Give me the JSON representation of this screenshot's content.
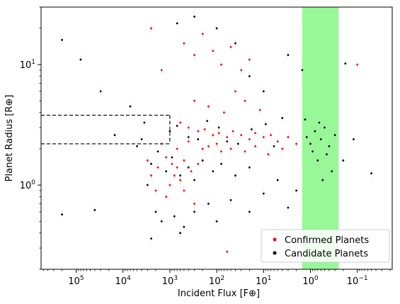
{
  "chart_data": {
    "type": "scatter",
    "title": "",
    "xlabel": "Incident Flux [F⊕]",
    "ylabel": "Planet Radius [R⊕]",
    "x_scale": "log",
    "y_scale": "log",
    "x_reversed": true,
    "xlim": [
      560000,
      0.018
    ],
    "ylim": [
      0.2,
      30
    ],
    "x_ticks": [
      {
        "value": 100000,
        "base": "10",
        "exp": "5"
      },
      {
        "value": 10000,
        "base": "10",
        "exp": "4"
      },
      {
        "value": 1000,
        "base": "10",
        "exp": "3"
      },
      {
        "value": 100,
        "base": "10",
        "exp": "2"
      },
      {
        "value": 10,
        "base": "10",
        "exp": "1"
      },
      {
        "value": 1,
        "base": "10",
        "exp": "0"
      },
      {
        "value": 0.1,
        "base": "10",
        "exp": "−1"
      }
    ],
    "y_ticks": [
      {
        "value": 1,
        "base": "10",
        "exp": "0"
      },
      {
        "value": 10,
        "base": "10",
        "exp": "1"
      }
    ],
    "grid": false,
    "legend": {
      "position": "bottom-right"
    },
    "habitable_zone": {
      "x_from": 1.5,
      "x_to": 0.25,
      "color": "#98f898"
    },
    "radius_gap_lines": [
      {
        "radius": 3.8,
        "x_from": 560000,
        "x_to": 1000
      },
      {
        "radius": 2.2,
        "x_from": 560000,
        "x_to": 1000
      }
    ],
    "series": [
      {
        "name": "Confirmed Planets",
        "color": "#ff0000",
        "points": [
          {
            "x": 500,
            "y": 15
          },
          {
            "x": 300,
            "y": 12
          },
          {
            "x": 200,
            "y": 18
          },
          {
            "x": 120,
            "y": 13
          },
          {
            "x": 80,
            "y": 10
          },
          {
            "x": 50,
            "y": 14
          },
          {
            "x": 30,
            "y": 9
          },
          {
            "x": 20,
            "y": 11
          },
          {
            "x": 2500,
            "y": 20
          },
          {
            "x": 1500,
            "y": 9
          },
          {
            "x": 40,
            "y": 6
          },
          {
            "x": 25,
            "y": 5
          },
          {
            "x": 300,
            "y": 5
          },
          {
            "x": 150,
            "y": 4.5
          },
          {
            "x": 70,
            "y": 4
          },
          {
            "x": 12,
            "y": 4.2
          },
          {
            "x": 600,
            "y": 3.3
          },
          {
            "x": 400,
            "y": 3.0
          },
          {
            "x": 250,
            "y": 2.8
          },
          {
            "x": 180,
            "y": 2.9
          },
          {
            "x": 120,
            "y": 2.6
          },
          {
            "x": 90,
            "y": 2.7
          },
          {
            "x": 60,
            "y": 2.5
          },
          {
            "x": 45,
            "y": 2.8
          },
          {
            "x": 30,
            "y": 2.6
          },
          {
            "x": 20,
            "y": 2.4
          },
          {
            "x": 15,
            "y": 2.7
          },
          {
            "x": 10,
            "y": 2.5
          },
          {
            "x": 7,
            "y": 2.6
          },
          {
            "x": 5,
            "y": 2.3
          },
          {
            "x": 3,
            "y": 2.5
          },
          {
            "x": 2,
            "y": 2.2
          },
          {
            "x": 1200,
            "y": 1.7
          },
          {
            "x": 900,
            "y": 1.5
          },
          {
            "x": 700,
            "y": 1.4
          },
          {
            "x": 500,
            "y": 1.6
          },
          {
            "x": 350,
            "y": 1.3
          },
          {
            "x": 250,
            "y": 1.5
          },
          {
            "x": 1800,
            "y": 1.4
          },
          {
            "x": 2500,
            "y": 1.2
          },
          {
            "x": 3000,
            "y": 1.6
          },
          {
            "x": 800,
            "y": 1.2
          },
          {
            "x": 600,
            "y": 1.1
          },
          {
            "x": 1000,
            "y": 1.0
          },
          {
            "x": 200,
            "y": 2.0
          },
          {
            "x": 150,
            "y": 2.1
          },
          {
            "x": 100,
            "y": 2.2
          },
          {
            "x": 80,
            "y": 1.9
          },
          {
            "x": 400,
            "y": 2.3
          },
          {
            "x": 700,
            "y": 2.0
          },
          {
            "x": 1500,
            "y": 2.2
          },
          {
            "x": 50,
            "y": 2.0
          },
          {
            "x": 25,
            "y": 1.9
          },
          {
            "x": 15,
            "y": 2.1
          },
          {
            "x": 8,
            "y": 1.8
          },
          {
            "x": 4,
            "y": 2.0
          },
          {
            "x": 2000,
            "y": 0.9
          },
          {
            "x": 1200,
            "y": 0.8
          },
          {
            "x": 500,
            "y": 0.9
          },
          {
            "x": 300,
            "y": 0.7
          },
          {
            "x": 60,
            "y": 0.28
          },
          {
            "x": 0.1,
            "y": 10
          }
        ]
      },
      {
        "name": "Candidate Planets",
        "color": "#000000",
        "points": [
          {
            "x": 200000,
            "y": 16
          },
          {
            "x": 80000,
            "y": 11
          },
          {
            "x": 30000,
            "y": 6.0
          },
          {
            "x": 15000,
            "y": 2.6
          },
          {
            "x": 200000,
            "y": 0.57
          },
          {
            "x": 40000,
            "y": 0.62
          },
          {
            "x": 7000,
            "y": 4.5
          },
          {
            "x": 4000,
            "y": 2.4
          },
          {
            "x": 3000,
            "y": 1.0
          },
          {
            "x": 2000,
            "y": 0.6
          },
          {
            "x": 1500,
            "y": 0.5
          },
          {
            "x": 800,
            "y": 0.55
          },
          {
            "x": 500,
            "y": 0.45
          },
          {
            "x": 300,
            "y": 0.6
          },
          {
            "x": 150,
            "y": 0.7
          },
          {
            "x": 100,
            "y": 0.5
          },
          {
            "x": 50,
            "y": 0.75
          },
          {
            "x": 20,
            "y": 0.6
          },
          {
            "x": 10,
            "y": 0.85
          },
          {
            "x": 5,
            "y": 1.1
          },
          {
            "x": 3,
            "y": 0.65
          },
          {
            "x": 2,
            "y": 0.9
          },
          {
            "x": 1000,
            "y": 2.8
          },
          {
            "x": 700,
            "y": 3.1
          },
          {
            "x": 400,
            "y": 2.5
          },
          {
            "x": 250,
            "y": 2.4
          },
          {
            "x": 160,
            "y": 3.4
          },
          {
            "x": 90,
            "y": 3.0
          },
          {
            "x": 60,
            "y": 2.3
          },
          {
            "x": 35,
            "y": 2.2
          },
          {
            "x": 18,
            "y": 2.9
          },
          {
            "x": 9,
            "y": 3.2
          },
          {
            "x": 6,
            "y": 2.1
          },
          {
            "x": 4,
            "y": 3.6
          },
          {
            "x": 1.2,
            "y": 2.5
          },
          {
            "x": 1.0,
            "y": 2.2
          },
          {
            "x": 0.9,
            "y": 1.9
          },
          {
            "x": 0.8,
            "y": 2.8
          },
          {
            "x": 0.7,
            "y": 1.6
          },
          {
            "x": 0.6,
            "y": 2.4
          },
          {
            "x": 0.5,
            "y": 3.0
          },
          {
            "x": 0.45,
            "y": 1.8
          },
          {
            "x": 0.4,
            "y": 2.1
          },
          {
            "x": 0.35,
            "y": 1.3
          },
          {
            "x": 0.3,
            "y": 2.6
          },
          {
            "x": 1.3,
            "y": 3.5
          },
          {
            "x": 0.55,
            "y": 1.1
          },
          {
            "x": 0.65,
            "y": 3.3
          },
          {
            "x": 0.2,
            "y": 1.6
          },
          {
            "x": 0.12,
            "y": 2.4
          },
          {
            "x": 0.05,
            "y": 1.25
          },
          {
            "x": 0.18,
            "y": 10.2
          },
          {
            "x": 2500,
            "y": 1.5
          },
          {
            "x": 1800,
            "y": 1.9
          },
          {
            "x": 1200,
            "y": 1.3
          },
          {
            "x": 900,
            "y": 1.7
          },
          {
            "x": 600,
            "y": 1.2
          },
          {
            "x": 400,
            "y": 1.4
          },
          {
            "x": 300,
            "y": 1.1
          },
          {
            "x": 200,
            "y": 1.6
          },
          {
            "x": 120,
            "y": 1.3
          },
          {
            "x": 80,
            "y": 1.5
          },
          {
            "x": 40,
            "y": 1.2
          },
          {
            "x": 20,
            "y": 1.4
          },
          {
            "x": 700,
            "y": 22
          },
          {
            "x": 300,
            "y": 25
          },
          {
            "x": 100,
            "y": 20
          },
          {
            "x": 40,
            "y": 15
          },
          {
            "x": 20,
            "y": 8
          },
          {
            "x": 10,
            "y": 6
          },
          {
            "x": 3,
            "y": 12
          },
          {
            "x": 1.5,
            "y": 9
          },
          {
            "x": 2500,
            "y": 0.36
          },
          {
            "x": 600,
            "y": 0.4
          },
          {
            "x": 5000,
            "y": 2.1
          },
          {
            "x": 3500,
            "y": 3.3
          }
        ]
      }
    ]
  }
}
